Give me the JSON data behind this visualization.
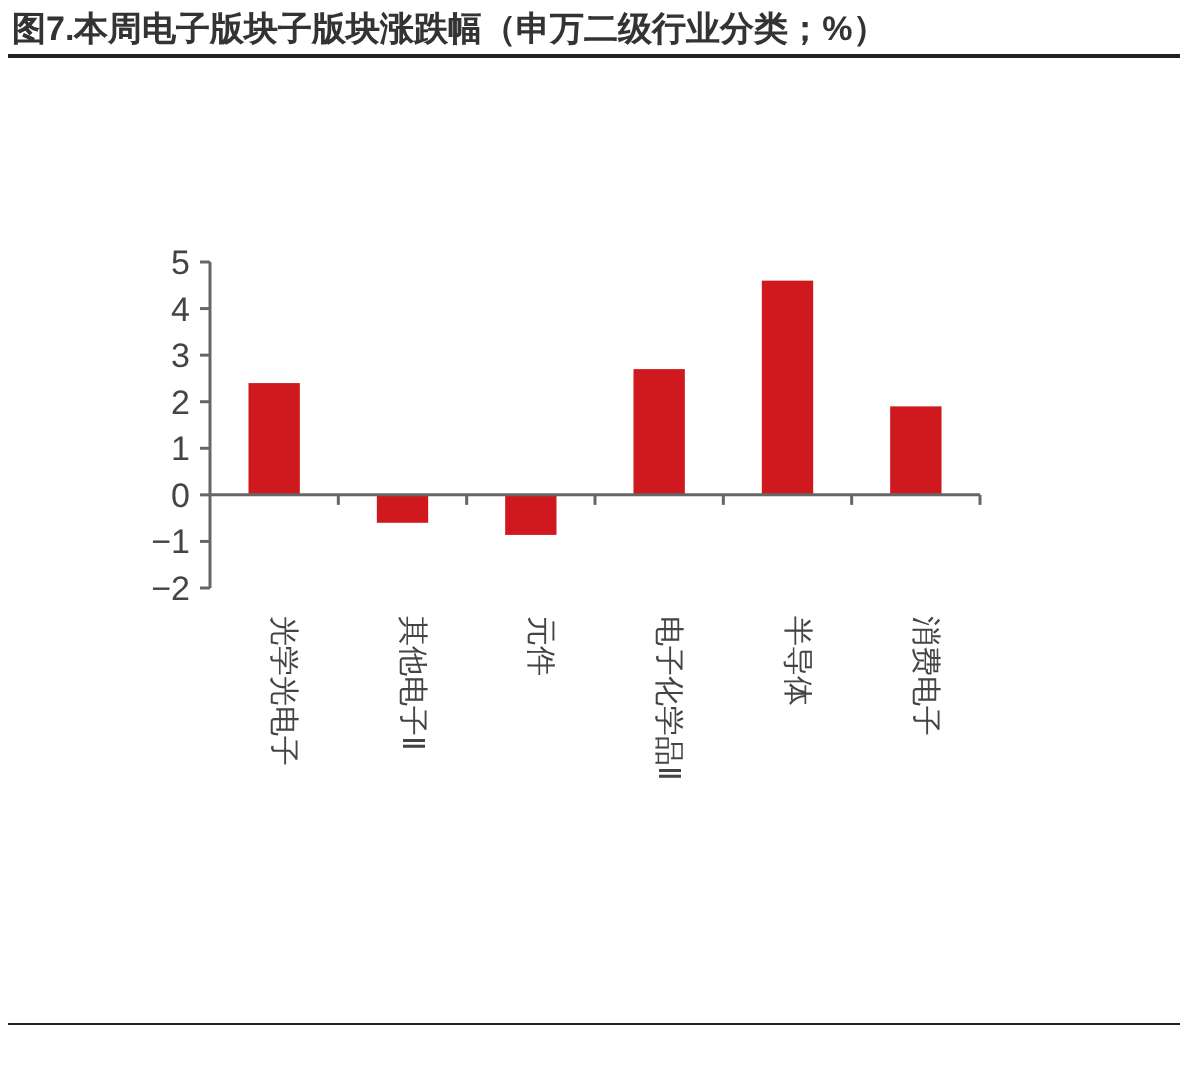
{
  "chart_data": {
    "type": "bar",
    "title": "图7.本周电子版块子版块涨跌幅（申万二级行业分类；%）",
    "categories": [
      "光学光电子",
      "其他电子Ⅱ",
      "元件",
      "电子化学品Ⅱ",
      "半导体",
      "消费电子"
    ],
    "values": [
      2.4,
      -0.6,
      -0.86,
      2.7,
      4.6,
      1.9
    ],
    "color": "#d0181f",
    "ylim": [
      -2,
      5
    ],
    "yticks": [
      {
        "value": -2,
        "label": "−2"
      },
      {
        "value": -1,
        "label": "−1"
      },
      0,
      1,
      2,
      3,
      4,
      5
    ]
  }
}
